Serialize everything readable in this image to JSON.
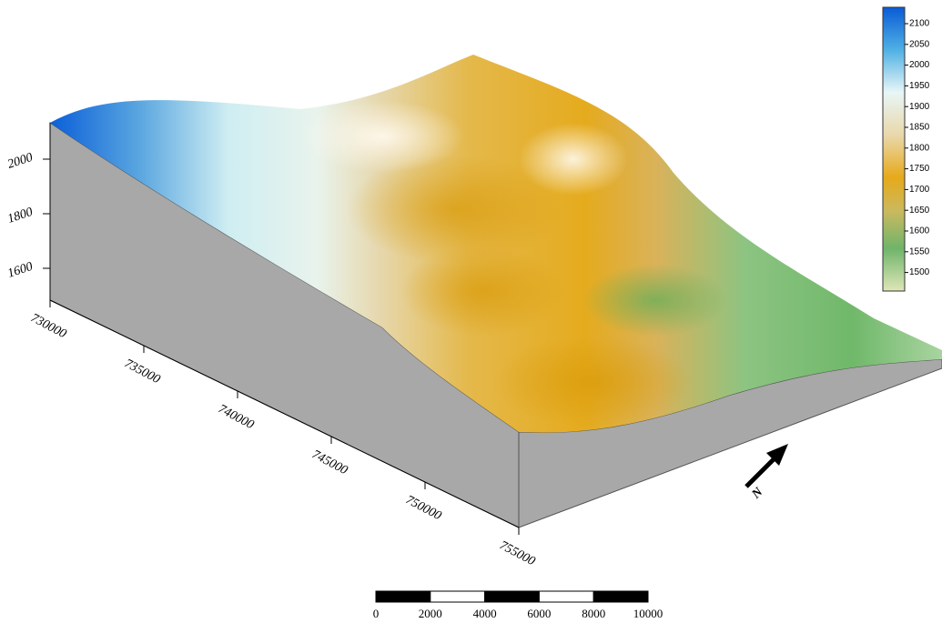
{
  "legend": {
    "ticks": [
      2100,
      2050,
      2000,
      1950,
      1900,
      1850,
      1800,
      1750,
      1700,
      1650,
      1600,
      1550,
      1500
    ]
  },
  "elevation_axis": {
    "ticks": [
      2000,
      1800,
      1600
    ]
  },
  "easting_axis": {
    "ticks": [
      730000,
      735000,
      740000,
      745000,
      750000,
      755000
    ]
  },
  "scale_bar": {
    "ticks": [
      0,
      2000,
      4000,
      6000,
      8000,
      10000
    ]
  },
  "north_arrow": {
    "label": "N"
  }
}
